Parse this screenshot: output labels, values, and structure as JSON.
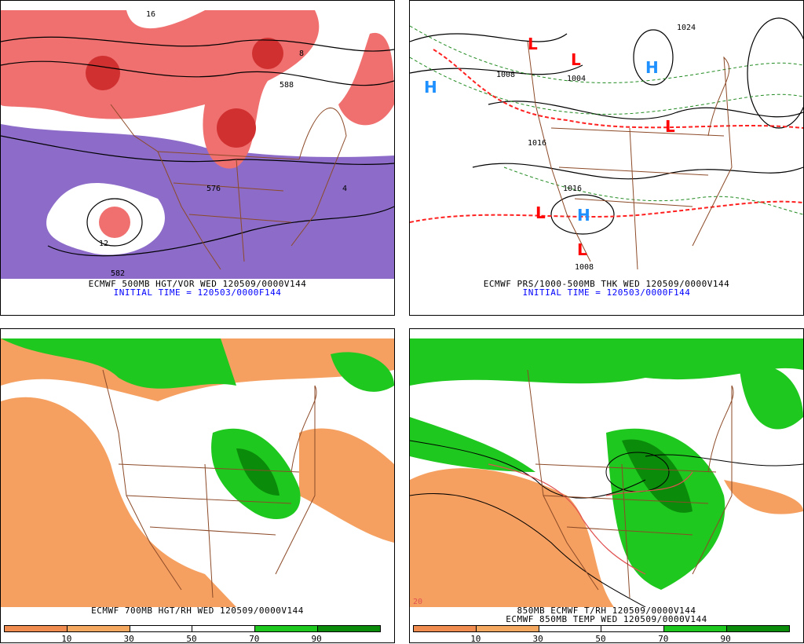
{
  "panels": [
    {
      "caption": "ECMWF 500MB HGT/VOR WED 120509/0000V144",
      "initial_time": "INITIAL TIME = 120503/0000F144",
      "labels": [
        "576",
        "582",
        "588",
        "8",
        "4",
        "12",
        "16"
      ]
    },
    {
      "caption": "ECMWF PRS/1000-500MB THK WED 120509/0000V144",
      "initial_time": "INITIAL TIME = 120503/0000F144",
      "labels": [
        "1008",
        "1016",
        "1024",
        "1004",
        "1008",
        "1016"
      ],
      "markers": [
        "H",
        "L",
        "L",
        "H",
        "L",
        "L",
        "H",
        "L"
      ]
    },
    {
      "caption": "ECMWF 700MB HGT/RH WED 120509/0000V144",
      "colorbar": {
        "ticks": [
          "10",
          "30",
          "50",
          "70",
          "90"
        ],
        "colors": [
          "#f08c50",
          "#f5a860",
          "#ffffff",
          "#ffffff",
          "#1ec81e",
          "#0a8c0a"
        ]
      }
    },
    {
      "caption": "850MB ECMWF T/RH 120509/0000V144",
      "caption2": "ECMWF 850MB TEMP WED 120509/0000V144",
      "labels": [
        "20"
      ],
      "colorbar": {
        "ticks": [
          "10",
          "30",
          "50",
          "70",
          "90"
        ],
        "colors": [
          "#f08c50",
          "#f5a860",
          "#ffffff",
          "#ffffff",
          "#1ec81e",
          "#0a8c0a"
        ]
      }
    }
  ],
  "colors": {
    "vorticity_high": "#e04040",
    "vorticity_low": "#8c6cc8",
    "borders": "#8c4a28",
    "rh_dry": "#f5a060",
    "rh_moist": "#1ec81e",
    "low_marker": "#ff0000",
    "high_marker": "#1e90ff"
  }
}
